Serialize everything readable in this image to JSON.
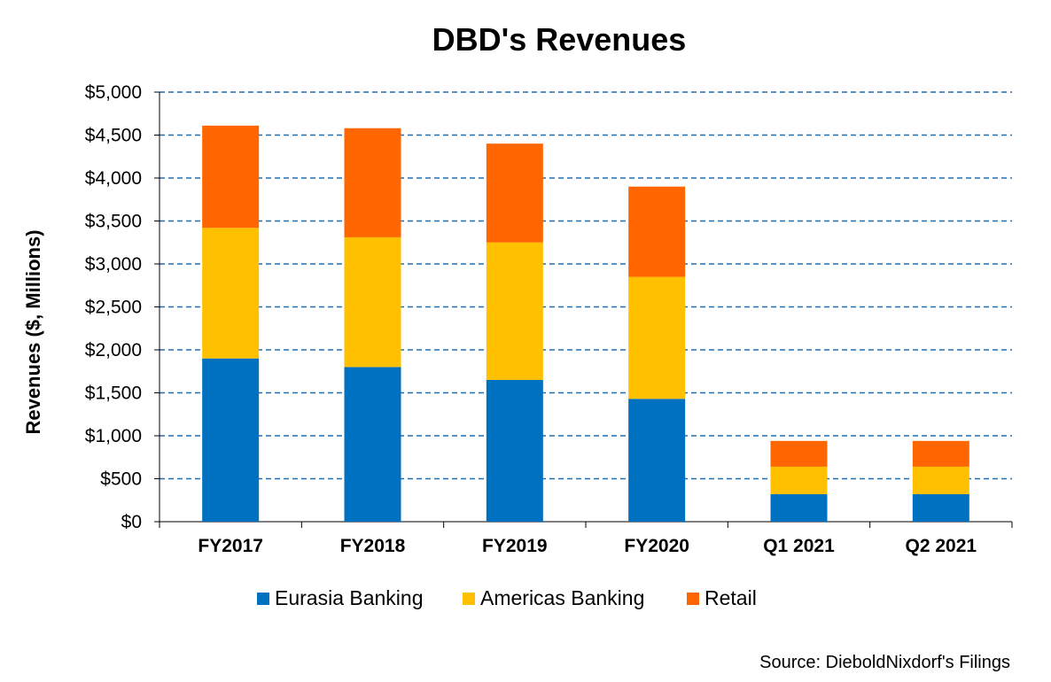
{
  "chart_data": {
    "type": "bar",
    "stacked": true,
    "title": "DBD's Revenues",
    "ylabel": "Revenues ($, Millions)",
    "xlabel": "",
    "categories": [
      "FY2017",
      "FY2018",
      "FY2019",
      "FY2020",
      "Q1 2021",
      "Q2 2021"
    ],
    "series": [
      {
        "name": "Eurasia Banking",
        "color": "#0070C0",
        "values": [
          1900,
          1800,
          1650,
          1430,
          320,
          320
        ]
      },
      {
        "name": "Americas Banking",
        "color": "#FFC000",
        "values": [
          1520,
          1510,
          1600,
          1420,
          320,
          320
        ]
      },
      {
        "name": "Retail",
        "color": "#FF6600",
        "values": [
          1190,
          1270,
          1150,
          1050,
          300,
          300
        ]
      }
    ],
    "ylim": [
      0,
      5000
    ],
    "yticks": [
      0,
      500,
      1000,
      1500,
      2000,
      2500,
      3000,
      3500,
      4000,
      4500,
      5000
    ],
    "ytick_labels": [
      "$0",
      "$500",
      "$1,000",
      "$1,500",
      "$2,000",
      "$2,500",
      "$3,000",
      "$3,500",
      "$4,000",
      "$4,500",
      "$5,000"
    ],
    "grid": true,
    "grid_color": "#1F6FB3",
    "legend_position": "bottom"
  },
  "source_text": "Source: DieboldNixdorf's Filings"
}
